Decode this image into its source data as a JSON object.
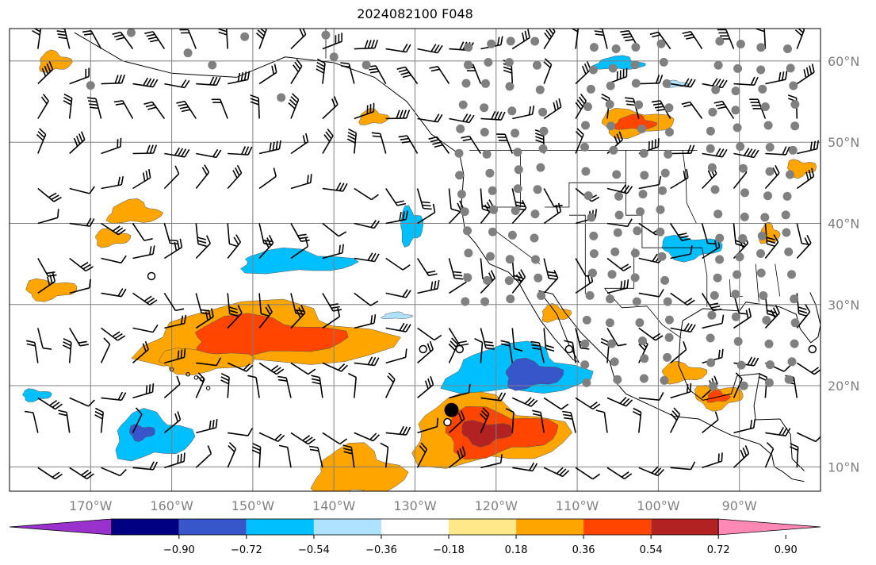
{
  "title": "2024082100 F048",
  "map": {
    "lon_range": [
      -180,
      -80
    ],
    "lat_range": [
      7,
      64
    ],
    "lat_ticks": [
      {
        "lat": 60,
        "label": "60°N"
      },
      {
        "lat": 50,
        "label": "50°N"
      },
      {
        "lat": 40,
        "label": "40°N"
      },
      {
        "lat": 30,
        "label": "30°N"
      },
      {
        "lat": 20,
        "label": "20°N"
      },
      {
        "lat": 10,
        "label": "10°N"
      }
    ],
    "lon_ticks": [
      {
        "lon": -170,
        "label": "170°W"
      },
      {
        "lon": -160,
        "label": "160°W"
      },
      {
        "lon": -150,
        "label": "150°W"
      },
      {
        "lon": -140,
        "label": "140°W"
      },
      {
        "lon": -130,
        "label": "130°W"
      },
      {
        "lon": -120,
        "label": "120°W"
      },
      {
        "lon": -110,
        "label": "110°W"
      },
      {
        "lon": -100,
        "label": "100°W"
      },
      {
        "lon": -90,
        "label": "90°W"
      }
    ],
    "gridlines": true,
    "highlighted_point": {
      "lon": -125.5,
      "lat": 17.0
    },
    "open_circle_points": [
      {
        "lon": -162.5,
        "lat": 33.5
      },
      {
        "lon": -129.0,
        "lat": 24.5
      },
      {
        "lon": -124.5,
        "lat": 24.5
      },
      {
        "lon": -111.0,
        "lat": 24.5
      },
      {
        "lon": -126.0,
        "lat": 15.5
      },
      {
        "lon": -81.0,
        "lat": 24.5
      }
    ]
  },
  "colorbar": {
    "colors": [
      "#9932CC",
      "#000080",
      "#3656C9",
      "#00BFFF",
      "#AEE2FF",
      "#FFFFFF",
      "#FFE88A",
      "#FFA500",
      "#FF4500",
      "#B22222",
      "#FF88B5"
    ],
    "tick_labels": [
      "−0.90",
      "−0.72",
      "−0.54",
      "−0.36",
      "−0.18",
      "0.18",
      "0.36",
      "0.54",
      "0.72",
      "0.90"
    ]
  },
  "legend_colors": {
    "grid": "#808080",
    "coast": "#000000",
    "station": "#808080"
  }
}
